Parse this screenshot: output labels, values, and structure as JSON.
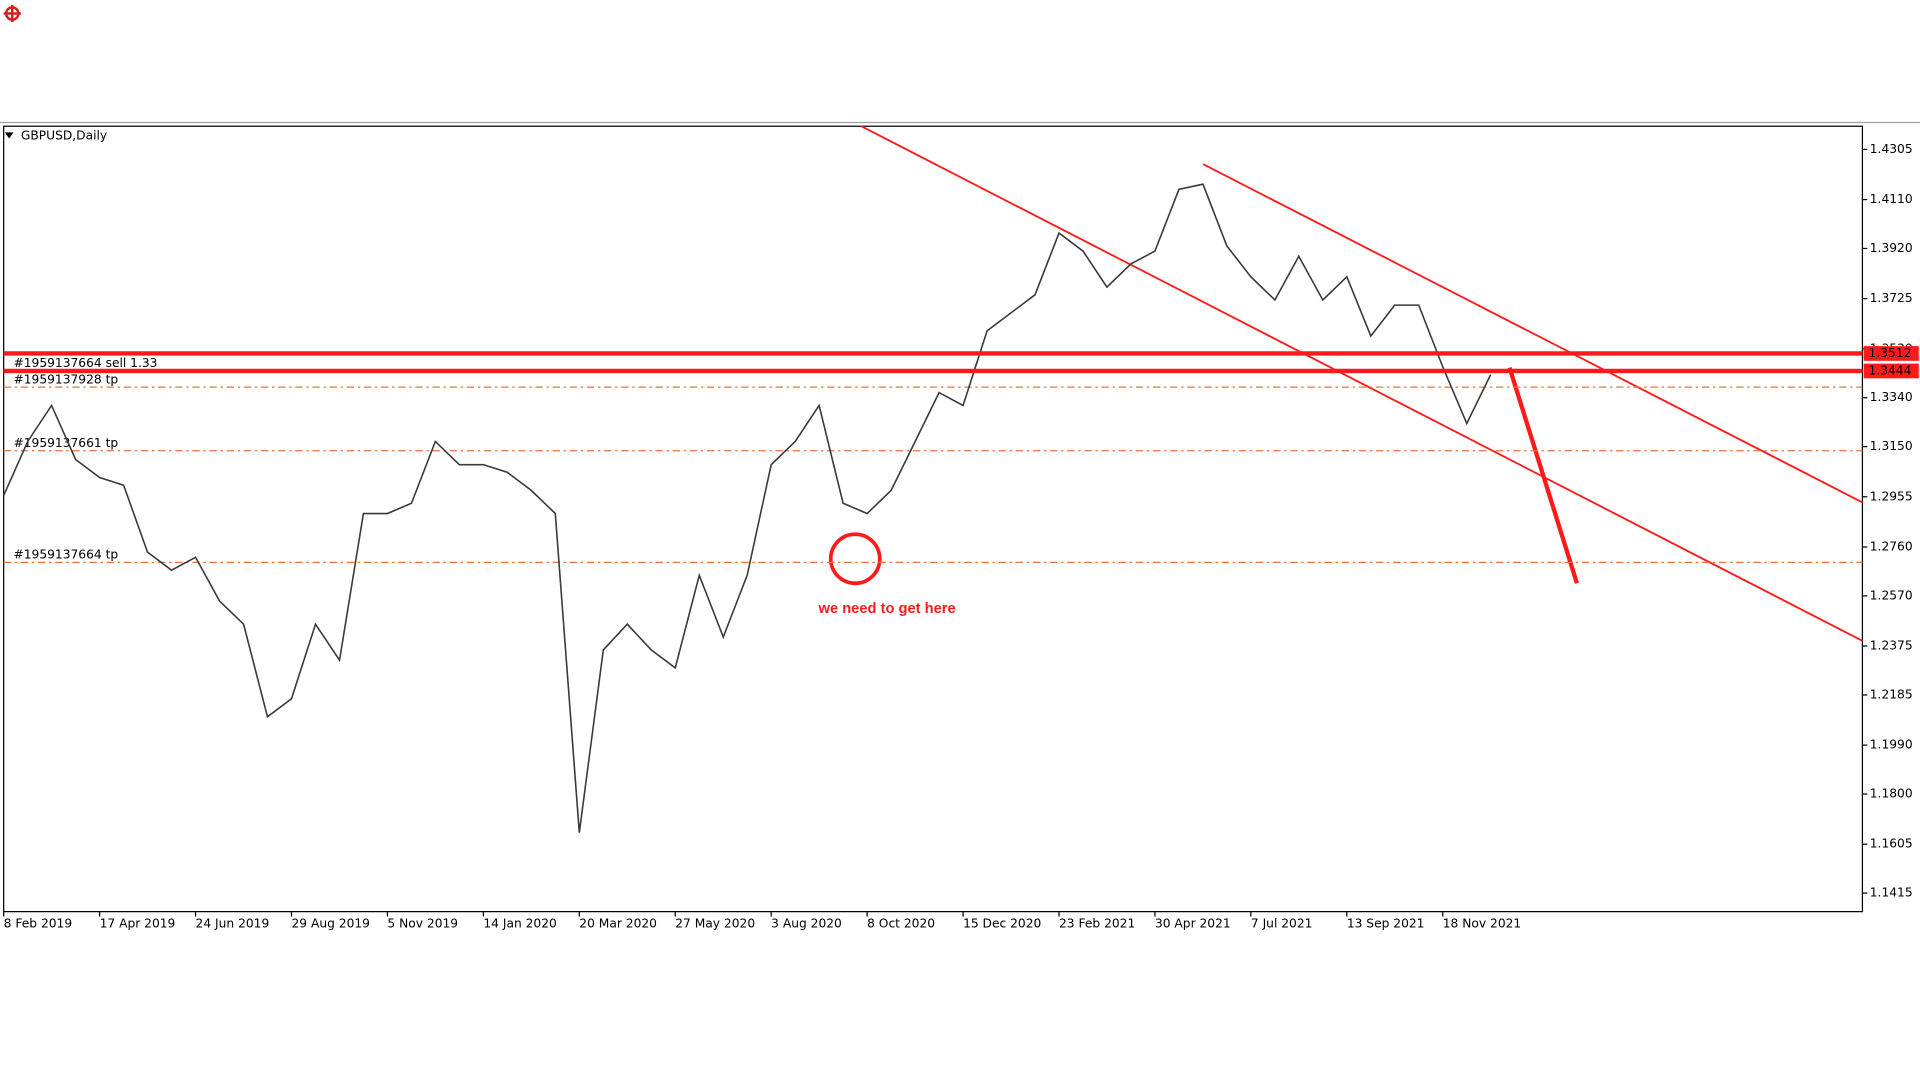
{
  "chart_data": {
    "type": "line",
    "title": "GBPUSD,Daily",
    "categories": [
      "8 Feb 2019",
      null,
      null,
      null,
      "17 Apr 2019",
      null,
      null,
      null,
      "24 Jun 2019",
      null,
      null,
      null,
      "29 Aug 2019",
      null,
      null,
      null,
      "5 Nov 2019",
      null,
      null,
      null,
      "14 Jan 2020",
      null,
      null,
      null,
      "20 Mar 2020",
      null,
      null,
      null,
      "27 May 2020",
      null,
      null,
      null,
      "3 Aug 2020",
      null,
      null,
      null,
      "8 Oct 2020",
      null,
      null,
      null,
      "15 Dec 2020",
      null,
      null,
      null,
      "23 Feb 2021",
      null,
      null,
      null,
      "30 Apr 2021",
      null,
      null,
      null,
      "7 Jul 2021",
      null,
      null,
      null,
      "13 Sep 2021",
      null,
      null,
      null,
      "18 Nov 2021",
      null,
      null
    ],
    "values": [
      1.296,
      1.317,
      1.331,
      1.31,
      1.303,
      1.3,
      1.274,
      1.267,
      1.272,
      1.255,
      1.246,
      1.21,
      1.217,
      1.246,
      1.232,
      1.289,
      1.289,
      1.293,
      1.317,
      1.308,
      1.308,
      1.305,
      1.298,
      1.289,
      1.165,
      1.236,
      1.246,
      1.236,
      1.229,
      1.265,
      1.241,
      1.265,
      1.308,
      1.317,
      1.331,
      1.293,
      1.289,
      1.298,
      1.317,
      1.336,
      1.331,
      1.36,
      1.367,
      1.374,
      1.398,
      1.391,
      1.377,
      1.386,
      1.391,
      1.415,
      1.417,
      1.393,
      1.381,
      1.372,
      1.389,
      1.372,
      1.381,
      1.358,
      1.37,
      1.37,
      1.346,
      1.324,
      1.343
    ],
    "color": "#3a3a3a",
    "ylim": [
      1.1343,
      1.4395
    ],
    "yticks": [
      {
        "value": 1.4305,
        "label": "1.4305"
      },
      {
        "value": 1.411,
        "label": "1.4110"
      },
      {
        "value": 1.392,
        "label": "1.3920"
      },
      {
        "value": 1.3725,
        "label": "1.3725"
      },
      {
        "value": 1.353,
        "label": "1.3530"
      },
      {
        "value": 1.334,
        "label": "1.3340"
      },
      {
        "value": 1.315,
        "label": "1.3150"
      },
      {
        "value": 1.2955,
        "label": "1.2955"
      },
      {
        "value": 1.276,
        "label": "1.2760"
      },
      {
        "value": 1.257,
        "label": "1.2570"
      },
      {
        "value": 1.2375,
        "label": "1.2375"
      },
      {
        "value": 1.2185,
        "label": "1.2185"
      },
      {
        "value": 1.199,
        "label": "1.1990"
      },
      {
        "value": 1.18,
        "label": "1.1800"
      },
      {
        "value": 1.1605,
        "label": "1.1605"
      },
      {
        "value": 1.1415,
        "label": "1.1415"
      }
    ],
    "price_levels": [
      {
        "value": 1.3512,
        "label": "1.3512"
      },
      {
        "value": 1.3444,
        "label": "1.3444"
      }
    ],
    "price_level_color": "#ff1a1a",
    "orders": [
      {
        "value": 1.3444,
        "label": "#1959137664 sell 1.33"
      },
      {
        "value": 1.3381,
        "label": "#1959137928 tp"
      },
      {
        "value": 1.3134,
        "label": "#1959137661 tp"
      },
      {
        "value": 1.27,
        "label": "#1959137664 tp"
      }
    ],
    "order_color": "#e8743b",
    "annotation": "we need to get here"
  }
}
